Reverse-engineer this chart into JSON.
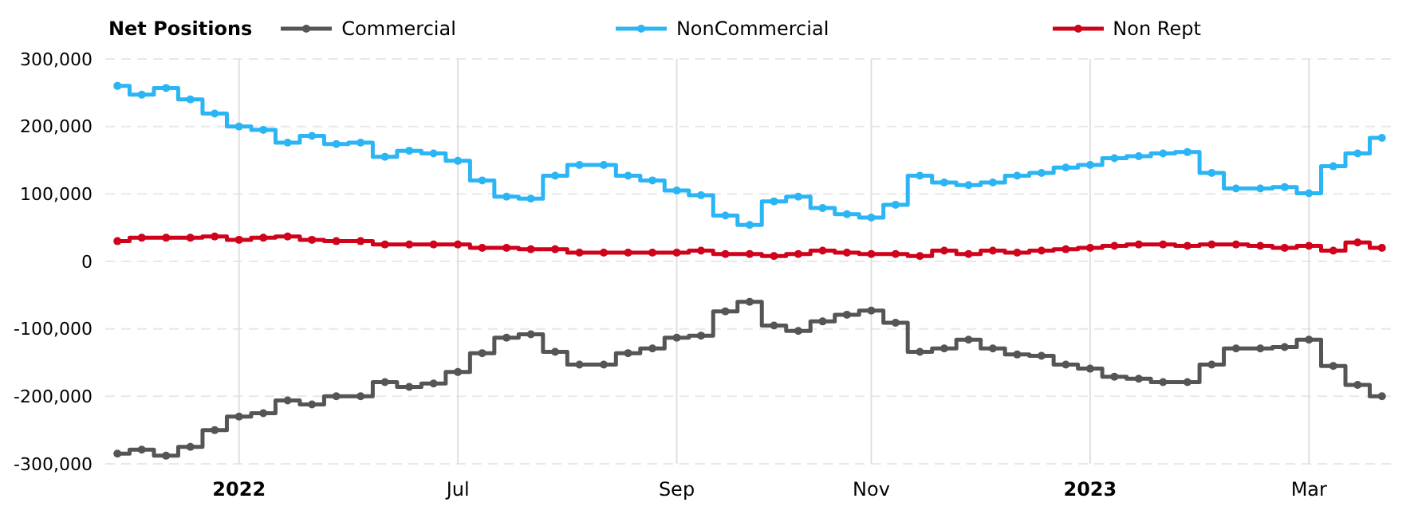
{
  "chart_data": {
    "type": "step",
    "legend_title": "Net Positions",
    "legend": "top",
    "grid": true,
    "marker": "circle",
    "line_style": "solid",
    "categories": [
      null,
      null,
      null,
      null,
      null,
      "2022",
      null,
      null,
      null,
      null,
      null,
      null,
      null,
      null,
      "Jul",
      null,
      null,
      null,
      null,
      null,
      null,
      null,
      null,
      "Sep",
      null,
      null,
      null,
      null,
      null,
      null,
      null,
      "Nov",
      null,
      null,
      null,
      null,
      null,
      null,
      null,
      null,
      "2023",
      null,
      null,
      null,
      null,
      null,
      null,
      null,
      null,
      "Mar",
      null,
      null,
      null
    ],
    "ylim": [
      -300000,
      300000
    ],
    "yticks": [
      {
        "value": -300000,
        "label": "-300,000"
      },
      {
        "value": -200000,
        "label": "-200,000"
      },
      {
        "value": -100000,
        "label": "-100,000"
      },
      0,
      {
        "value": 100000,
        "label": "100,000"
      },
      {
        "value": 200000,
        "label": "200,000"
      },
      {
        "value": 300000,
        "label": "300,000"
      }
    ],
    "series": [
      {
        "name": "Commercial",
        "color": "#555555",
        "values": [
          -285000,
          -279000,
          -288000,
          -275000,
          -250000,
          -230000,
          -225000,
          -206000,
          -212000,
          -200000,
          -200000,
          -179000,
          -186000,
          -181000,
          -164000,
          -136000,
          -113000,
          -108000,
          -134000,
          -153000,
          -153000,
          -136000,
          -129000,
          -113000,
          -110000,
          -74000,
          -60000,
          -95000,
          -103000,
          -89000,
          -79000,
          -73000,
          -91000,
          -134000,
          -129000,
          -116000,
          -129000,
          -138000,
          -140000,
          -153000,
          -159000,
          -171000,
          -174000,
          -179000,
          -179000,
          -153000,
          -129000,
          -129000,
          -127000,
          -116000,
          -155000,
          -183000,
          -200000
        ]
      },
      {
        "name": "NonCommercial",
        "color": "#2bb5f4",
        "values": [
          260000,
          247000,
          257000,
          240000,
          219000,
          200000,
          195000,
          176000,
          186000,
          174000,
          176000,
          155000,
          164000,
          160000,
          149000,
          120000,
          96000,
          93000,
          127000,
          143000,
          143000,
          127000,
          120000,
          105000,
          98000,
          68000,
          54000,
          89000,
          96000,
          79000,
          70000,
          65000,
          84000,
          127000,
          117000,
          113000,
          117000,
          127000,
          131000,
          139000,
          143000,
          153000,
          156000,
          160000,
          162000,
          131000,
          108000,
          108000,
          110000,
          101000,
          141000,
          160000,
          183000
        ]
      },
      {
        "name": "Non Rept",
        "color": "#d0021b",
        "values": [
          30000,
          35000,
          35000,
          35000,
          37000,
          32000,
          35000,
          37000,
          32000,
          30000,
          30000,
          25000,
          25000,
          25000,
          25000,
          20000,
          20000,
          18000,
          18000,
          13000,
          13000,
          13000,
          13000,
          13000,
          16000,
          11000,
          11000,
          8000,
          11000,
          16000,
          13000,
          11000,
          11000,
          8000,
          16000,
          11000,
          16000,
          13000,
          16000,
          18000,
          20000,
          23000,
          25000,
          25000,
          23000,
          25000,
          25000,
          23000,
          20000,
          23000,
          16000,
          28000,
          20000
        ]
      }
    ]
  }
}
